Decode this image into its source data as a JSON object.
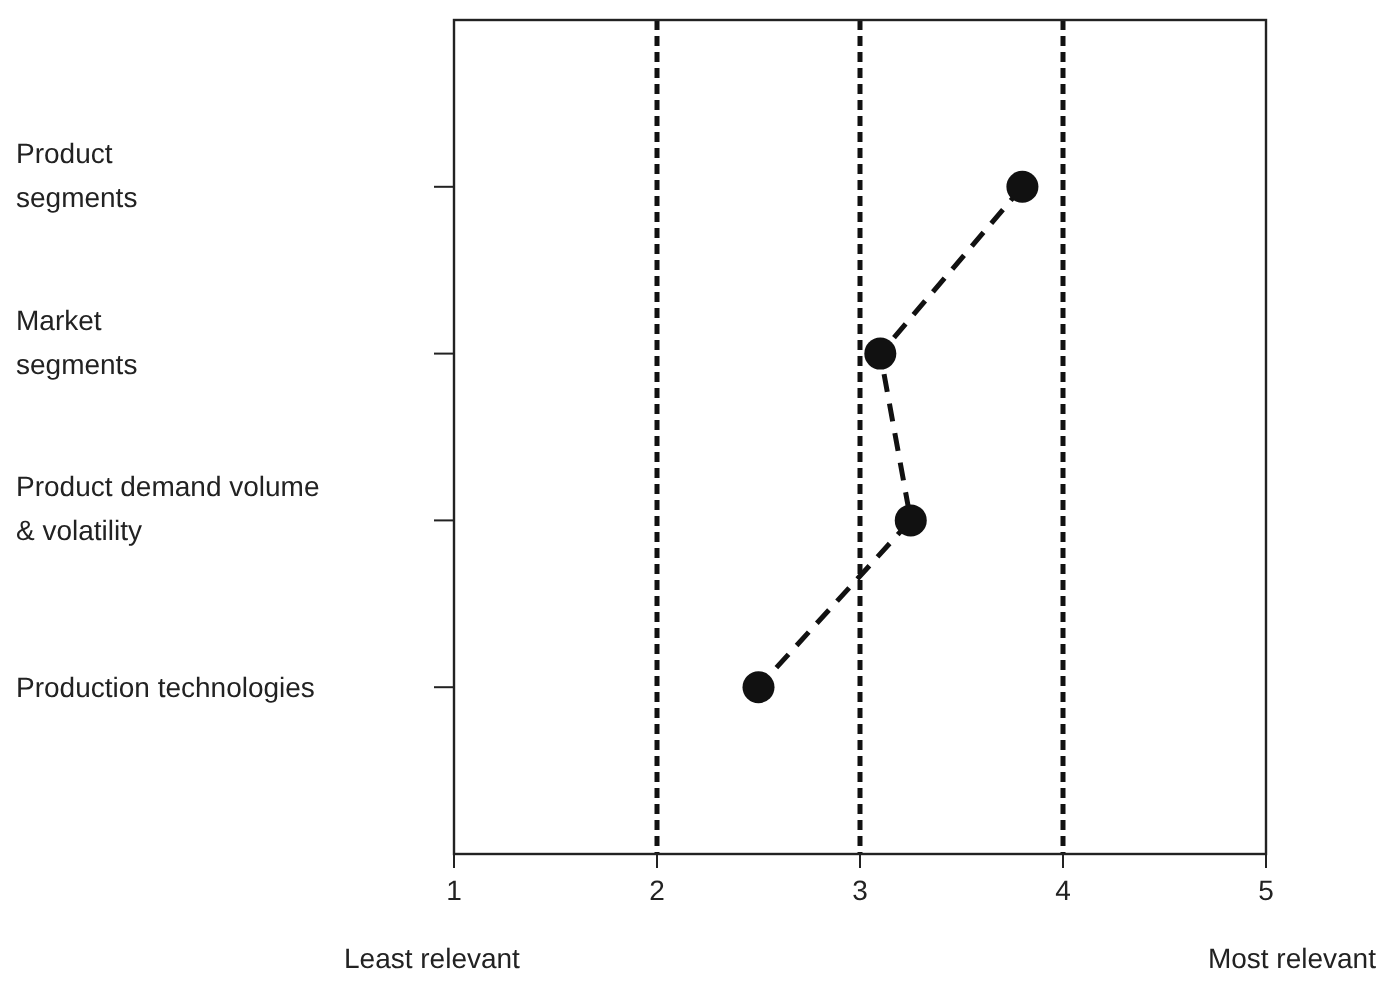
{
  "chart_data": {
    "type": "line",
    "orientation": "horizontal",
    "categories": [
      "Product\nsegments",
      "Market\nsegments",
      "Product demand volume\n& volatility",
      "Production technologies"
    ],
    "series": [
      {
        "color": "#111111",
        "values": [
          3.8,
          3.1,
          3.25,
          2.5
        ]
      }
    ],
    "xlim": [
      1,
      5
    ],
    "xticks": [
      1,
      2,
      3,
      4,
      5
    ],
    "marker": "circle",
    "line_style": "dashed",
    "grid": false,
    "ref_lines": [
      {
        "axis": "x",
        "value": 2,
        "line_style": "dotted",
        "color": "#111111"
      },
      {
        "axis": "x",
        "value": 3,
        "line_style": "dotted",
        "color": "#111111"
      },
      {
        "axis": "x",
        "value": 4,
        "line_style": "dotted",
        "color": "#111111"
      }
    ],
    "annotations": [
      "Least relevant",
      "Most relevant"
    ]
  }
}
